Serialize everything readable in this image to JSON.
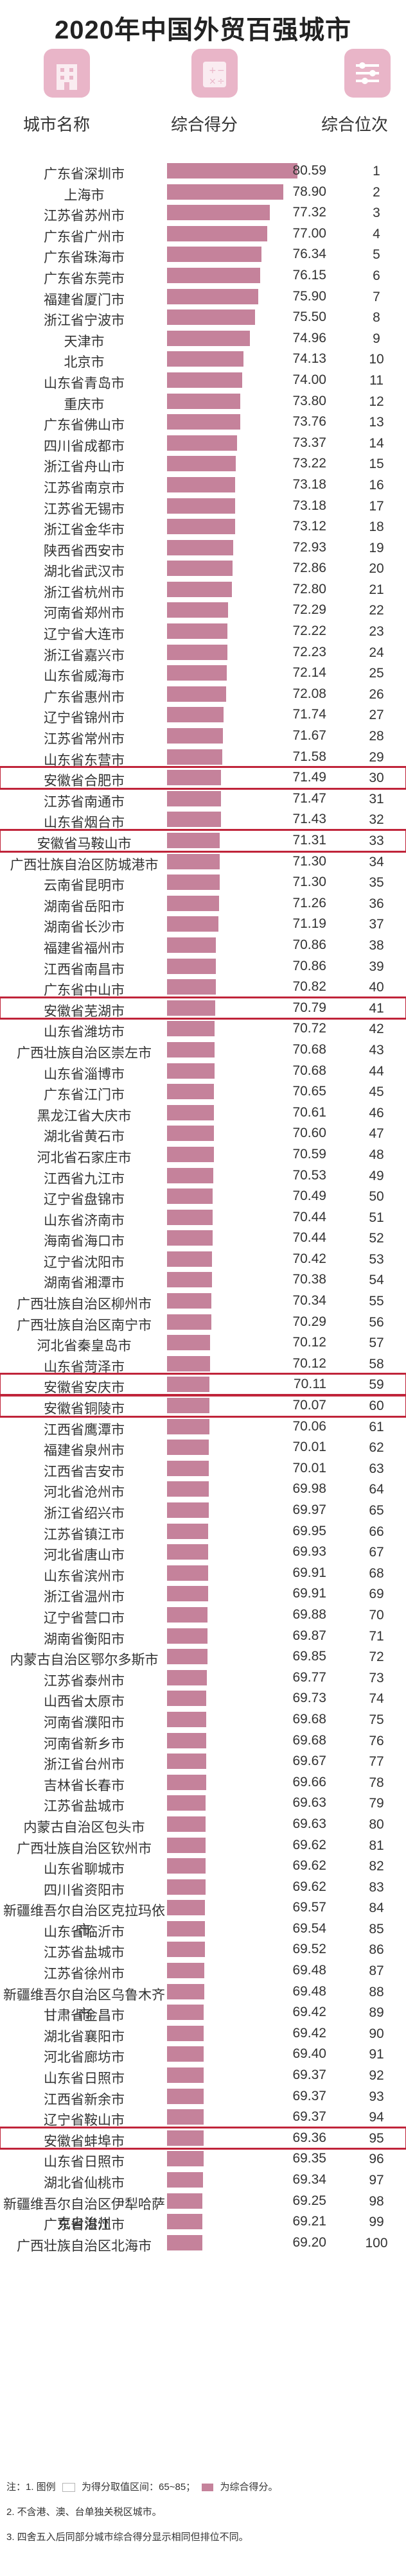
{
  "title": "2020年中国外贸百强城市",
  "headers": {
    "city": "城市名称",
    "score": "综合得分",
    "rank": "综合位次"
  },
  "header_icons": [
    "building-icon",
    "calculator-icon",
    "sliders-icon"
  ],
  "highlight_color": "#c0243a",
  "bar_color": "#c5829b",
  "chart_data": {
    "type": "bar",
    "orientation": "horizontal",
    "xlim": [
      65,
      85
    ],
    "categories": [
      "广东省深圳市",
      "上海市",
      "江苏省苏州市",
      "广东省广州市",
      "广东省珠海市",
      "广东省东莞市",
      "福建省厦门市",
      "浙江省宁波市",
      "天津市",
      "北京市",
      "山东省青岛市",
      "重庆市",
      "广东省佛山市",
      "四川省成都市",
      "浙江省舟山市",
      "江苏省南京市",
      "江苏省无锡市",
      "浙江省金华市",
      "陕西省西安市",
      "湖北省武汉市",
      "浙江省杭州市",
      "河南省郑州市",
      "辽宁省大连市",
      "浙江省嘉兴市",
      "山东省威海市",
      "广东省惠州市",
      "辽宁省锦州市",
      "江苏省常州市",
      "山东省东营市",
      "安徽省合肥市",
      "江苏省南通市",
      "山东省烟台市",
      "安徽省马鞍山市",
      "广西壮族自治区防城港市",
      "云南省昆明市",
      "湖南省岳阳市",
      "湖南省长沙市",
      "福建省福州市",
      "江西省南昌市",
      "广东省中山市",
      "安徽省芜湖市",
      "山东省潍坊市",
      "广西壮族自治区崇左市",
      "山东省淄博市",
      "广东省江门市",
      "黑龙江省大庆市",
      "湖北省黄石市",
      "河北省石家庄市",
      "江西省九江市",
      "辽宁省盘锦市",
      "山东省济南市",
      "海南省海口市",
      "辽宁省沈阳市",
      "湖南省湘潭市",
      "广西壮族自治区柳州市",
      "广西壮族自治区南宁市",
      "河北省秦皇岛市",
      "山东省菏泽市",
      "安徽省安庆市",
      "安徽省铜陵市",
      "江西省鹰潭市",
      "福建省泉州市",
      "江西省吉安市",
      "河北省沧州市",
      "浙江省绍兴市",
      "江苏省镇江市",
      "河北省唐山市",
      "山东省滨州市",
      "浙江省温州市",
      "辽宁省营口市",
      "湖南省衡阳市",
      "内蒙古自治区鄂尔多斯市",
      "江苏省泰州市",
      "山西省太原市",
      "河南省濮阳市",
      "河南省新乡市",
      "浙江省台州市",
      "吉林省长春市",
      "江苏省盐城市",
      "内蒙古自治区包头市",
      "广西壮族自治区钦州市",
      "山东省聊城市",
      "四川省资阳市",
      "新疆维吾尔自治区克拉玛依市",
      "山东省临沂市",
      "江苏省盐城市",
      "江苏省徐州市",
      "新疆维吾尔自治区乌鲁木齐市",
      "甘肃省金昌市",
      "湖北省襄阳市",
      "河北省廊坊市",
      "山东省日照市",
      "江西省新余市",
      "辽宁省鞍山市",
      "安徽省蚌埠市",
      "山东省日照市",
      "湖北省仙桃市",
      "新疆维吾尔自治区伊犁哈萨克自治州",
      "广东省湛江市",
      "广西壮族自治区北海市"
    ],
    "values": [
      80.59,
      78.9,
      77.32,
      77.0,
      76.34,
      76.15,
      75.9,
      75.5,
      74.96,
      74.13,
      74.0,
      73.8,
      73.76,
      73.37,
      73.22,
      73.18,
      73.18,
      73.12,
      72.93,
      72.86,
      72.8,
      72.29,
      72.22,
      72.23,
      72.14,
      72.08,
      71.74,
      71.67,
      71.58,
      71.49,
      71.47,
      71.43,
      71.31,
      71.3,
      71.3,
      71.26,
      71.19,
      70.86,
      70.86,
      70.82,
      70.79,
      70.72,
      70.68,
      70.68,
      70.65,
      70.61,
      70.6,
      70.59,
      70.53,
      70.49,
      70.44,
      70.44,
      70.42,
      70.38,
      70.34,
      70.29,
      70.12,
      70.12,
      70.11,
      70.07,
      70.06,
      70.01,
      70.01,
      69.98,
      69.97,
      69.95,
      69.93,
      69.91,
      69.91,
      69.88,
      69.87,
      69.85,
      69.77,
      69.73,
      69.68,
      69.68,
      69.67,
      69.66,
      69.63,
      69.63,
      69.62,
      69.62,
      69.62,
      69.57,
      69.54,
      69.52,
      69.48,
      69.48,
      69.42,
      69.42,
      69.4,
      69.37,
      69.37,
      69.37,
      69.36,
      69.35,
      69.34,
      69.25,
      69.21,
      69.2
    ],
    "ranks": [
      1,
      2,
      3,
      4,
      5,
      6,
      7,
      8,
      9,
      10,
      11,
      12,
      13,
      14,
      15,
      16,
      17,
      18,
      19,
      20,
      21,
      22,
      23,
      24,
      25,
      26,
      27,
      28,
      29,
      30,
      31,
      32,
      33,
      34,
      35,
      36,
      37,
      38,
      39,
      40,
      41,
      42,
      43,
      44,
      45,
      46,
      47,
      48,
      49,
      50,
      51,
      52,
      53,
      54,
      55,
      56,
      57,
      58,
      59,
      60,
      61,
      62,
      63,
      64,
      65,
      66,
      67,
      68,
      69,
      70,
      71,
      72,
      73,
      74,
      75,
      76,
      77,
      78,
      79,
      80,
      81,
      82,
      83,
      84,
      85,
      86,
      87,
      88,
      89,
      90,
      91,
      92,
      93,
      94,
      95,
      96,
      97,
      98,
      99,
      100
    ],
    "highlighted": [
      "安徽省合肥市",
      "安徽省马鞍山市",
      "安徽省芜湖市",
      "安徽省安庆市",
      "安徽省铜陵市",
      "安徽省蚌埠市"
    ]
  },
  "notes": [
    {
      "prefix": "注：1. 图例",
      "empty_label": "为得分取值区间：65~85；",
      "fill_label": "为综合得分。"
    },
    {
      "text": "2. 不含港、澳、台单独关税区城市。"
    },
    {
      "text": "3. 四舍五入后同部分城市综合得分显示相同但排位不同。"
    }
  ]
}
